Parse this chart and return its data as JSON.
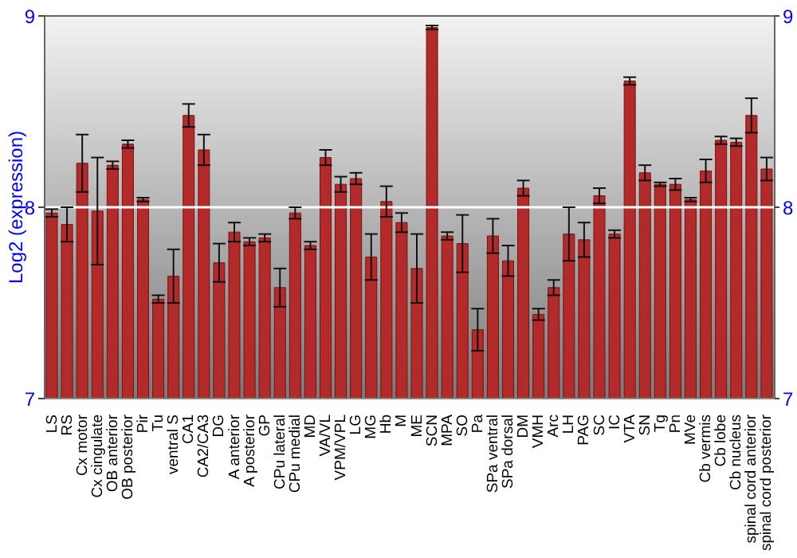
{
  "chart_data": {
    "type": "bar",
    "ylabel": "Log2 (expression)",
    "categories": [
      "LS",
      "RS",
      "Cx motor",
      "Cx cingulate",
      "OB anterior",
      "OB posterior",
      "Pir",
      "Tu",
      "ventral S",
      "CA1",
      "CA2/CA3",
      "DG",
      "A anterior",
      "A posterior",
      "GP",
      "CPu lateral",
      "CPu medial",
      "MD",
      "VA/VL",
      "VPM/VPL",
      "LG",
      "MG",
      "Hb",
      "M",
      "ME",
      "SCN",
      "MPA",
      "SO",
      "Pa",
      "SPa ventral",
      "SPa dorsal",
      "DM",
      "VMH",
      "Arc",
      "LH",
      "PAG",
      "SC",
      "IC",
      "VTA",
      "SN",
      "Tg",
      "Pn",
      "MVe",
      "Cb vermis",
      "Cb lobe",
      "Cb nucleus",
      "spinal cord anterior",
      "spinal cord posterior"
    ],
    "values": [
      7.97,
      7.91,
      8.23,
      7.98,
      8.22,
      8.33,
      8.04,
      7.52,
      7.64,
      8.48,
      8.3,
      7.71,
      7.87,
      7.82,
      7.84,
      7.58,
      7.97,
      7.8,
      8.26,
      8.12,
      8.15,
      7.74,
      8.03,
      7.92,
      7.68,
      8.94,
      7.85,
      7.81,
      7.36,
      7.85,
      7.72,
      8.1,
      7.44,
      7.58,
      7.86,
      7.83,
      8.06,
      7.86,
      8.66,
      8.18,
      8.12,
      8.12,
      8.04,
      8.19,
      8.35,
      8.34,
      8.48,
      8.2
    ],
    "errors": [
      0.02,
      0.09,
      0.15,
      0.28,
      0.02,
      0.02,
      0.01,
      0.02,
      0.14,
      0.06,
      0.08,
      0.1,
      0.05,
      0.02,
      0.02,
      0.1,
      0.03,
      0.02,
      0.04,
      0.04,
      0.03,
      0.12,
      0.08,
      0.05,
      0.18,
      0.01,
      0.02,
      0.15,
      0.11,
      0.09,
      0.08,
      0.04,
      0.03,
      0.04,
      0.14,
      0.09,
      0.04,
      0.02,
      0.02,
      0.04,
      0.01,
      0.03,
      0.01,
      0.06,
      0.02,
      0.02,
      0.09,
      0.06
    ],
    "color": "#b22a2a",
    "ylim": [
      7,
      9
    ],
    "yticks": [
      7,
      8,
      9
    ],
    "y2lim": [
      7,
      9
    ],
    "y2ticks": [
      7,
      8,
      9
    ],
    "grid": "y"
  }
}
